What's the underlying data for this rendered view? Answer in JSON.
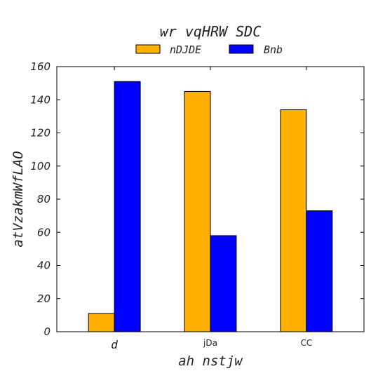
{
  "chart_data": {
    "type": "bar",
    "title": "wr vqHRW SDC",
    "xlabel": "ah nstjw",
    "ylabel": "atVzakmWfLAO",
    "categories": [
      "d",
      "jDa",
      "CC"
    ],
    "series": [
      {
        "name": "nDJDE",
        "color": "#ffb000",
        "values": [
          11,
          145,
          134
        ]
      },
      {
        "name": "Bnb",
        "color": "#0000ff",
        "values": [
          151,
          58,
          73
        ]
      }
    ],
    "ylim": [
      0,
      160
    ],
    "yticks": [
      0,
      20,
      40,
      60,
      80,
      100,
      120,
      140,
      160
    ],
    "grid": false,
    "legend_position": "top-center"
  }
}
